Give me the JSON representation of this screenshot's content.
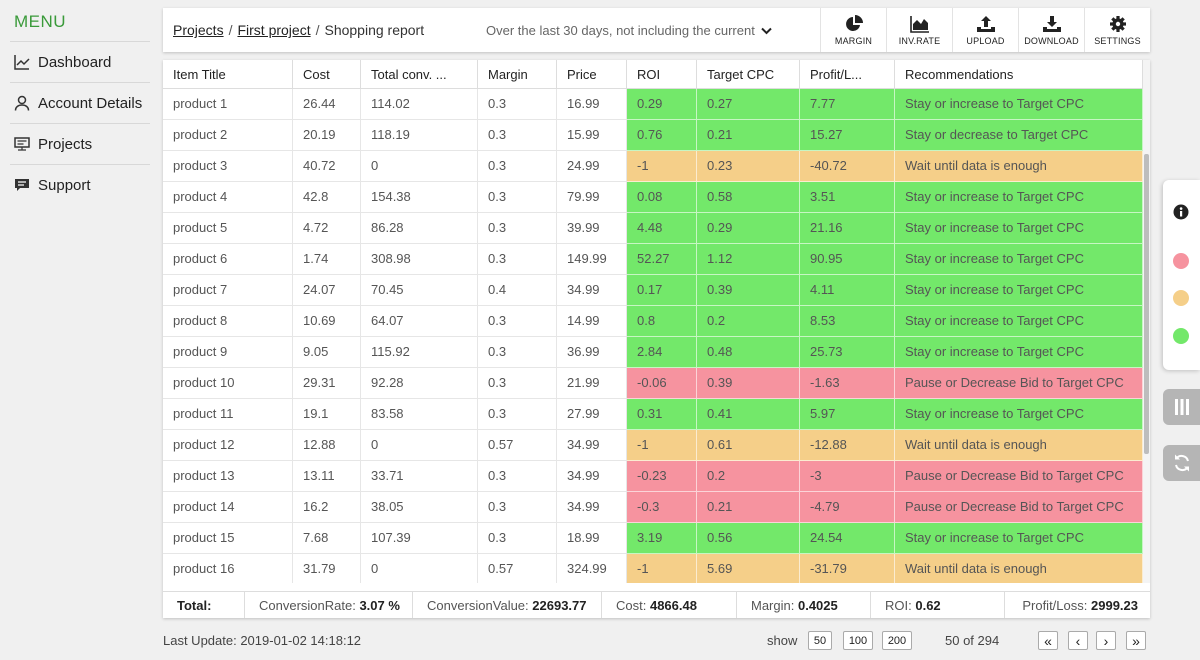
{
  "sidebar": {
    "title": "MENU",
    "items": [
      {
        "label": "Dashboard",
        "icon": "chart-line-icon"
      },
      {
        "label": "Account Details",
        "icon": "user-icon"
      },
      {
        "label": "Projects",
        "icon": "monitor-icon"
      },
      {
        "label": "Support",
        "icon": "chat-icon"
      }
    ]
  },
  "header": {
    "breadcrumb": [
      "Projects",
      "First project",
      "Shopping report"
    ],
    "period": "Over the last 30 days, not including the current",
    "toolbar": [
      {
        "label": "MARGIN",
        "icon": "pie-chart-icon"
      },
      {
        "label": "INV.RATE",
        "icon": "area-chart-icon"
      },
      {
        "label": "UPLOAD",
        "icon": "upload-icon"
      },
      {
        "label": "DOWNLOAD",
        "icon": "download-icon"
      },
      {
        "label": "SETTINGS",
        "icon": "gear-icon"
      }
    ]
  },
  "colors": {
    "green": "#73e86a",
    "orange": "#f5cf89",
    "red": "#f6939f",
    "menu_accent": "#3a9a3a"
  },
  "table": {
    "columns": [
      "Item Title",
      "Cost",
      "Total conv. ...",
      "Margin",
      "Price",
      "ROI",
      "Target CPC",
      "Profit/L...",
      "Recommendations"
    ],
    "rows": [
      {
        "title": "product 1",
        "cost": "26.44",
        "conv": "114.02",
        "margin": "0.3",
        "price": "16.99",
        "roi": "0.29",
        "cpc": "0.27",
        "profit": "7.77",
        "rec": "Stay or increase to Target CPC",
        "status": "green"
      },
      {
        "title": "product 2",
        "cost": "20.19",
        "conv": "118.19",
        "margin": "0.3",
        "price": "15.99",
        "roi": "0.76",
        "cpc": "0.21",
        "profit": "15.27",
        "rec": "Stay or decrease to Target CPC",
        "status": "green"
      },
      {
        "title": "product 3",
        "cost": "40.72",
        "conv": "0",
        "margin": "0.3",
        "price": "24.99",
        "roi": "-1",
        "cpc": "0.23",
        "profit": "-40.72",
        "rec": "Wait until data is enough",
        "status": "orange"
      },
      {
        "title": "product 4",
        "cost": "42.8",
        "conv": "154.38",
        "margin": "0.3",
        "price": "79.99",
        "roi": "0.08",
        "cpc": "0.58",
        "profit": "3.51",
        "rec": "Stay or increase to Target CPC",
        "status": "green"
      },
      {
        "title": "product 5",
        "cost": "4.72",
        "conv": "86.28",
        "margin": "0.3",
        "price": "39.99",
        "roi": "4.48",
        "cpc": "0.29",
        "profit": "21.16",
        "rec": "Stay or increase to Target CPC",
        "status": "green"
      },
      {
        "title": "product 6",
        "cost": "1.74",
        "conv": "308.98",
        "margin": "0.3",
        "price": "149.99",
        "roi": "52.27",
        "cpc": "1.12",
        "profit": "90.95",
        "rec": "Stay or increase to Target CPC",
        "status": "green"
      },
      {
        "title": "product 7",
        "cost": "24.07",
        "conv": "70.45",
        "margin": "0.4",
        "price": "34.99",
        "roi": "0.17",
        "cpc": "0.39",
        "profit": "4.11",
        "rec": "Stay or increase to Target CPC",
        "status": "green"
      },
      {
        "title": "product 8",
        "cost": "10.69",
        "conv": "64.07",
        "margin": "0.3",
        "price": "14.99",
        "roi": "0.8",
        "cpc": "0.2",
        "profit": "8.53",
        "rec": "Stay or increase to Target CPC",
        "status": "green"
      },
      {
        "title": "product 9",
        "cost": "9.05",
        "conv": "115.92",
        "margin": "0.3",
        "price": "36.99",
        "roi": "2.84",
        "cpc": "0.48",
        "profit": "25.73",
        "rec": "Stay or increase to Target CPC",
        "status": "green"
      },
      {
        "title": "product 10",
        "cost": "29.31",
        "conv": "92.28",
        "margin": "0.3",
        "price": "21.99",
        "roi": "-0.06",
        "cpc": "0.39",
        "profit": "-1.63",
        "rec": "Pause or Decrease Bid to Target CPC",
        "status": "red"
      },
      {
        "title": "product 11",
        "cost": "19.1",
        "conv": "83.58",
        "margin": "0.3",
        "price": "27.99",
        "roi": "0.31",
        "cpc": "0.41",
        "profit": "5.97",
        "rec": "Stay or increase to Target CPC",
        "status": "green"
      },
      {
        "title": "product 12",
        "cost": "12.88",
        "conv": "0",
        "margin": "0.57",
        "price": "34.99",
        "roi": "-1",
        "cpc": "0.61",
        "profit": "-12.88",
        "rec": "Wait until data is enough",
        "status": "orange"
      },
      {
        "title": "product 13",
        "cost": "13.11",
        "conv": "33.71",
        "margin": "0.3",
        "price": "34.99",
        "roi": "-0.23",
        "cpc": "0.2",
        "profit": "-3",
        "rec": "Pause or Decrease Bid to Target CPC",
        "status": "red"
      },
      {
        "title": "product 14",
        "cost": "16.2",
        "conv": "38.05",
        "margin": "0.3",
        "price": "34.99",
        "roi": "-0.3",
        "cpc": "0.21",
        "profit": "-4.79",
        "rec": "Pause or Decrease Bid to Target CPC",
        "status": "red"
      },
      {
        "title": "product 15",
        "cost": "7.68",
        "conv": "107.39",
        "margin": "0.3",
        "price": "18.99",
        "roi": "3.19",
        "cpc": "0.56",
        "profit": "24.54",
        "rec": "Stay or increase to Target CPC",
        "status": "green"
      },
      {
        "title": "product 16",
        "cost": "31.79",
        "conv": "0",
        "margin": "0.57",
        "price": "324.99",
        "roi": "-1",
        "cpc": "5.69",
        "profit": "-31.79",
        "rec": "Wait until data is enough",
        "status": "orange"
      }
    ]
  },
  "totals": {
    "label": "Total:",
    "items": [
      {
        "label": "ConversionRate:",
        "value": "3.07 %"
      },
      {
        "label": "ConversionValue:",
        "value": "22693.77"
      },
      {
        "label": "Cost:",
        "value": "4866.48"
      },
      {
        "label": "Margin:",
        "value": "0.4025"
      },
      {
        "label": "ROI:",
        "value": "0.62"
      },
      {
        "label": "Profit/Loss:",
        "value": "2999.23"
      }
    ]
  },
  "footer": {
    "last_update": "Last Update: 2019-01-02 14:18:12",
    "show_label": "show",
    "page_sizes": [
      "50",
      "100",
      "200"
    ],
    "page_info": "50 of 294",
    "nav": {
      "first": "«",
      "prev": "‹",
      "next": "›",
      "last": "»"
    }
  }
}
